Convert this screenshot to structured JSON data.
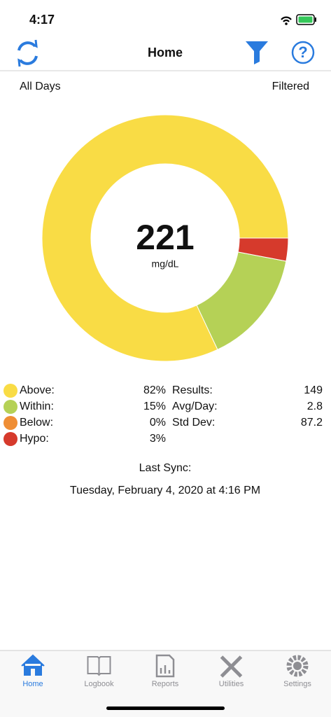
{
  "status_bar": {
    "time": "4:17"
  },
  "nav": {
    "title": "Home"
  },
  "header": {
    "left": "All Days",
    "right": "Filtered"
  },
  "donut": {
    "type": "pie",
    "center_value": "221",
    "center_unit": "mg/dL",
    "categories": [
      "Above:",
      "Within:",
      "Below:",
      "Hypo:"
    ],
    "values": [
      82,
      15,
      0,
      3
    ],
    "value_labels": [
      "82%",
      "15%",
      "0%",
      "3%"
    ],
    "colors": [
      "#f9dc45",
      "#b5d156",
      "#ef8e35",
      "#d63a2c"
    ]
  },
  "stats": [
    {
      "label": "Results:",
      "value": "149"
    },
    {
      "label": "Avg/Day:",
      "value": "2.8"
    },
    {
      "label": "Std Dev:",
      "value": "87.2"
    }
  ],
  "sync": {
    "label": "Last Sync:",
    "date": "Tuesday, February 4, 2020 at 4:16 PM"
  },
  "tabs": [
    "Home",
    "Logbook",
    "Reports",
    "Utilities",
    "Settings"
  ]
}
